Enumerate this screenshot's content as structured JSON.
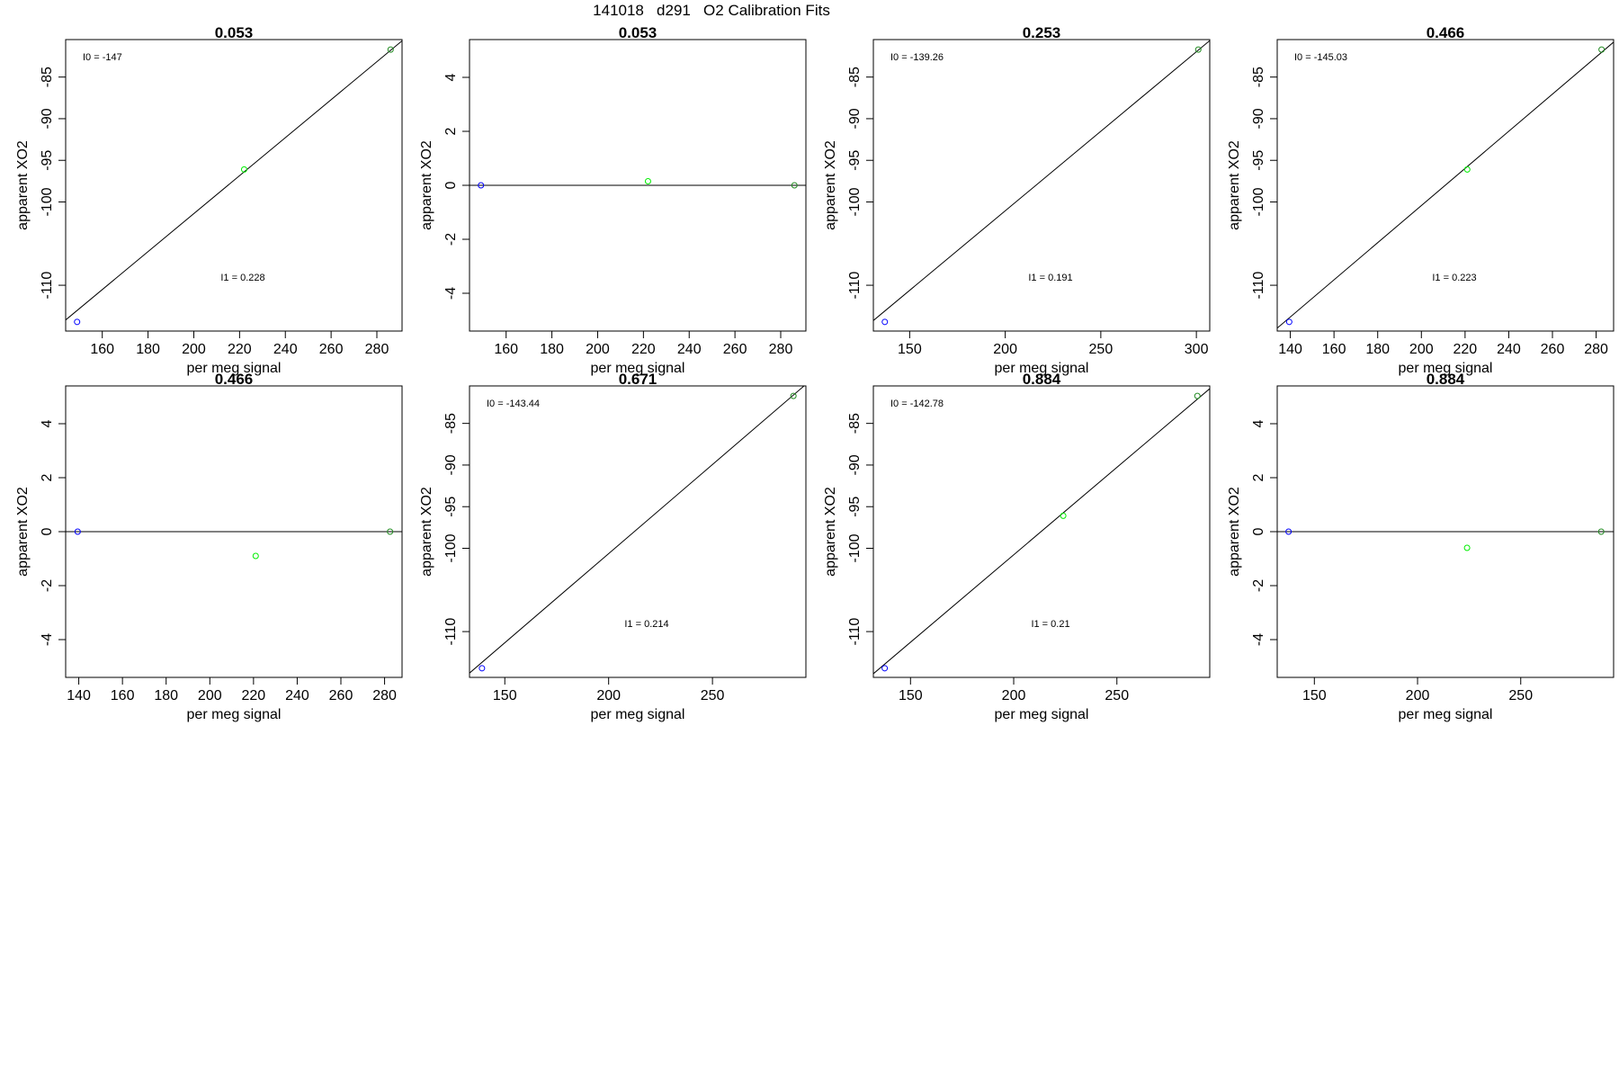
{
  "page": {
    "title": "141018   d291   O2 Calibration Fits"
  },
  "point_colors": {
    "low_std": "#0000ff",
    "mid_std": "#00ee00",
    "high_std": "#228b22",
    "fit_line": "#000000"
  },
  "chart_data": [
    {
      "type": "scatter",
      "title": "0.053",
      "xlabel": "per meg signal",
      "ylabel": "apparent XO2",
      "xlim": [
        144,
        291
      ],
      "ylim": [
        -115.5,
        -80.5
      ],
      "xticks": [
        160,
        180,
        200,
        220,
        240,
        260,
        280
      ],
      "yticks": [
        -85,
        -90,
        -95,
        -100,
        -110
      ],
      "grid": false,
      "points": [
        {
          "x": 149,
          "y": -114.4,
          "std": "low_std"
        },
        {
          "x": 222,
          "y": -96.1,
          "std": "mid_std"
        },
        {
          "x": 286,
          "y": -81.7,
          "std": "high_std"
        }
      ],
      "fit": {
        "intercept": -147,
        "slope": 0.228
      },
      "annotations": {
        "intercept_label": "I0 =  -147",
        "slope_label": "I1 =  0.228"
      }
    },
    {
      "type": "scatter",
      "title": "0.053",
      "xlabel": "per meg signal",
      "ylabel": "apparent XO2",
      "xlim": [
        144,
        291
      ],
      "ylim": [
        -5.4,
        5.4
      ],
      "xticks": [
        160,
        180,
        200,
        220,
        240,
        260,
        280
      ],
      "yticks": [
        4,
        2,
        0,
        -2,
        -4
      ],
      "grid": false,
      "points": [
        {
          "x": 149,
          "y": 0,
          "std": "low_std"
        },
        {
          "x": 222,
          "y": 0.15,
          "std": "mid_std"
        },
        {
          "x": 286,
          "y": 0,
          "std": "high_std"
        }
      ],
      "fit": {
        "intercept": 0,
        "slope": 0
      },
      "annotations": {
        "intercept_label": "",
        "slope_label": ""
      }
    },
    {
      "type": "scatter",
      "title": "0.253",
      "xlabel": "per meg signal",
      "ylabel": "apparent XO2",
      "xlim": [
        131,
        307
      ],
      "ylim": [
        -115.5,
        -80.5
      ],
      "xticks": [
        150,
        200,
        250,
        300
      ],
      "yticks": [
        -85,
        -90,
        -95,
        -100,
        -110
      ],
      "grid": false,
      "points": [
        {
          "x": 137,
          "y": -114.4,
          "std": "low_std"
        },
        {
          "x": 301,
          "y": -81.7,
          "std": "high_std"
        }
      ],
      "fit": {
        "intercept": -139.26,
        "slope": 0.191
      },
      "annotations": {
        "intercept_label": "I0 =  -139.26",
        "slope_label": "I1 =  0.191"
      }
    },
    {
      "type": "scatter",
      "title": "0.466",
      "xlabel": "per meg signal",
      "ylabel": "apparent XO2",
      "xlim": [
        134,
        288
      ],
      "ylim": [
        -115.5,
        -80.5
      ],
      "xticks": [
        140,
        160,
        180,
        200,
        220,
        240,
        260,
        280
      ],
      "yticks": [
        -85,
        -90,
        -95,
        -100,
        -110
      ],
      "grid": false,
      "points": [
        {
          "x": 139.5,
          "y": -114.4,
          "std": "low_std"
        },
        {
          "x": 221,
          "y": -96.1,
          "std": "mid_std"
        },
        {
          "x": 282.5,
          "y": -81.7,
          "std": "high_std"
        }
      ],
      "fit": {
        "intercept": -145.03,
        "slope": 0.223
      },
      "annotations": {
        "intercept_label": "I0 =  -145.03",
        "slope_label": "I1 =  0.223"
      }
    },
    {
      "type": "scatter",
      "title": "0.466",
      "xlabel": "per meg signal",
      "ylabel": "apparent XO2",
      "xlim": [
        134,
        288
      ],
      "ylim": [
        -5.4,
        5.4
      ],
      "xticks": [
        140,
        160,
        180,
        200,
        220,
        240,
        260,
        280
      ],
      "yticks": [
        4,
        2,
        0,
        -2,
        -4
      ],
      "grid": false,
      "points": [
        {
          "x": 139.5,
          "y": 0,
          "std": "low_std"
        },
        {
          "x": 221,
          "y": -0.9,
          "std": "mid_std"
        },
        {
          "x": 282.5,
          "y": 0,
          "std": "high_std"
        }
      ],
      "fit": {
        "intercept": 0,
        "slope": 0
      },
      "annotations": {
        "intercept_label": "",
        "slope_label": ""
      }
    },
    {
      "type": "scatter",
      "title": "0.671",
      "xlabel": "per meg signal",
      "ylabel": "apparent XO2",
      "xlim": [
        133,
        295
      ],
      "ylim": [
        -115.5,
        -80.5
      ],
      "xticks": [
        150,
        200,
        250
      ],
      "yticks": [
        -85,
        -90,
        -95,
        -100,
        -110
      ],
      "grid": false,
      "points": [
        {
          "x": 139,
          "y": -114.4,
          "std": "low_std"
        },
        {
          "x": 289,
          "y": -81.7,
          "std": "high_std"
        }
      ],
      "fit": {
        "intercept": -143.44,
        "slope": 0.214
      },
      "annotations": {
        "intercept_label": "I0 =  -143.44",
        "slope_label": "I1 =  0.214"
      }
    },
    {
      "type": "scatter",
      "title": "0.884",
      "xlabel": "per meg signal",
      "ylabel": "apparent XO2",
      "xlim": [
        132,
        295
      ],
      "ylim": [
        -115.5,
        -80.5
      ],
      "xticks": [
        150,
        200,
        250
      ],
      "yticks": [
        -85,
        -90,
        -95,
        -100,
        -110
      ],
      "grid": false,
      "points": [
        {
          "x": 137.5,
          "y": -114.4,
          "std": "low_std"
        },
        {
          "x": 224,
          "y": -96.1,
          "std": "mid_std"
        },
        {
          "x": 289,
          "y": -81.7,
          "std": "high_std"
        }
      ],
      "fit": {
        "intercept": -142.78,
        "slope": 0.21
      },
      "annotations": {
        "intercept_label": "I0 =  -142.78",
        "slope_label": "I1 =  0.21"
      }
    },
    {
      "type": "scatter",
      "title": "0.884",
      "xlabel": "per meg signal",
      "ylabel": "apparent XO2",
      "xlim": [
        132,
        295
      ],
      "ylim": [
        -5.4,
        5.4
      ],
      "xticks": [
        150,
        200,
        250
      ],
      "yticks": [
        4,
        2,
        0,
        -2,
        -4
      ],
      "grid": false,
      "points": [
        {
          "x": 137.5,
          "y": 0,
          "std": "low_std"
        },
        {
          "x": 224,
          "y": -0.6,
          "std": "mid_std"
        },
        {
          "x": 289,
          "y": 0,
          "std": "high_std"
        }
      ],
      "fit": {
        "intercept": 0,
        "slope": 0
      },
      "annotations": {
        "intercept_label": "",
        "slope_label": ""
      }
    }
  ]
}
